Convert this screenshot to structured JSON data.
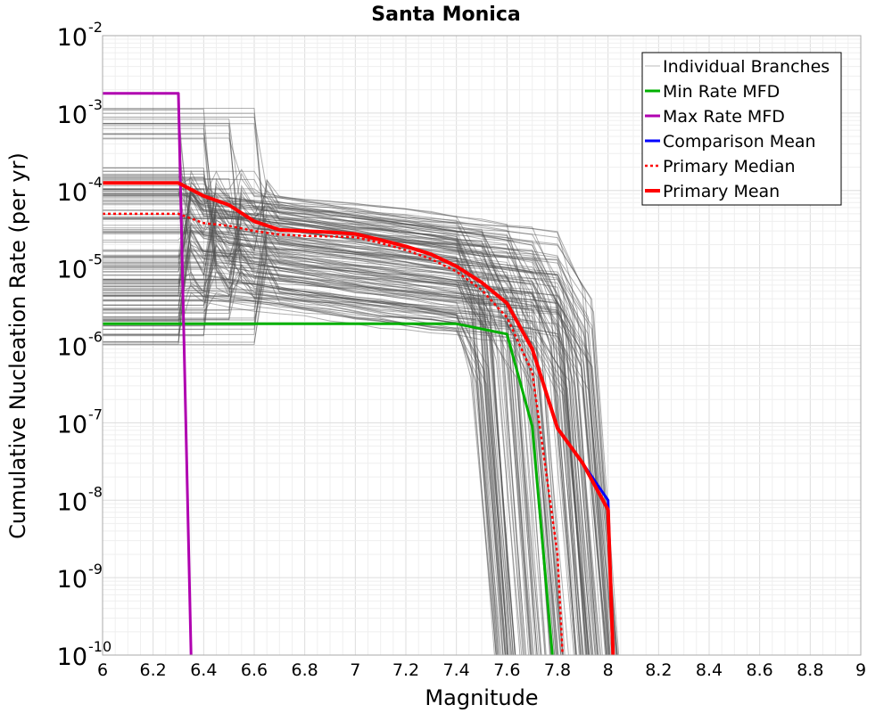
{
  "chart_data": {
    "type": "line",
    "title": "Santa Monica",
    "xlabel": "Magnitude",
    "ylabel": "Cumulative Nucleation Rate (per yr)",
    "xlim": [
      6,
      9
    ],
    "ylim": [
      1e-10,
      0.01
    ],
    "y_scale": "log",
    "grid": true,
    "legend_position": "top-right",
    "x_ticks": [
      "6",
      "6.2",
      "6.4",
      "6.6",
      "6.8",
      "7",
      "7.2",
      "7.4",
      "7.6",
      "7.8",
      "8",
      "8.2",
      "8.4",
      "8.6",
      "8.8",
      "9"
    ],
    "y_ticks": [
      {
        "base": "10",
        "exp": "-10",
        "value": 1e-10
      },
      {
        "base": "10",
        "exp": "-9",
        "value": 1e-09
      },
      {
        "base": "10",
        "exp": "-8",
        "value": 1e-08
      },
      {
        "base": "10",
        "exp": "-7",
        "value": 1e-07
      },
      {
        "base": "10",
        "exp": "-6",
        "value": 1e-06
      },
      {
        "base": "10",
        "exp": "-5",
        "value": 1e-05
      },
      {
        "base": "10",
        "exp": "-4",
        "value": 0.0001
      },
      {
        "base": "10",
        "exp": "-3",
        "value": 0.001
      },
      {
        "base": "10",
        "exp": "-2",
        "value": 0.01
      }
    ],
    "series": [
      {
        "name": "Min Rate MFD",
        "color": "#00b000",
        "width": 3,
        "dash": "",
        "points": [
          [
            6.0,
            1.9e-06
          ],
          [
            7.4,
            1.9e-06
          ],
          [
            7.6,
            1.4e-06
          ],
          [
            7.7,
            9e-08
          ],
          [
            7.78,
            1e-10
          ]
        ]
      },
      {
        "name": "Max Rate MFD",
        "color": "#b000b0",
        "width": 3,
        "dash": "",
        "points": [
          [
            6.0,
            0.0018
          ],
          [
            6.3,
            0.0018
          ],
          [
            6.35,
            1e-10
          ]
        ]
      },
      {
        "name": "Comparison Mean",
        "color": "#0000ff",
        "width": 3,
        "dash": "",
        "points": [
          [
            6.0,
            0.000125
          ],
          [
            6.3,
            0.000125
          ],
          [
            6.4,
            8.5e-05
          ],
          [
            6.5,
            6.5e-05
          ],
          [
            6.6,
            4e-05
          ],
          [
            6.7,
            3.1e-05
          ],
          [
            6.8,
            3e-05
          ],
          [
            6.9,
            2.9e-05
          ],
          [
            7.0,
            2.75e-05
          ],
          [
            7.1,
            2.3e-05
          ],
          [
            7.2,
            1.9e-05
          ],
          [
            7.3,
            1.5e-05
          ],
          [
            7.4,
            1.05e-05
          ],
          [
            7.5,
            6.5e-06
          ],
          [
            7.6,
            3.5e-06
          ],
          [
            7.7,
            9e-07
          ],
          [
            7.8,
            8.5e-08
          ],
          [
            7.9,
            3e-08
          ],
          [
            8.0,
            1e-08
          ],
          [
            8.02,
            1e-10
          ]
        ]
      },
      {
        "name": "Primary Median",
        "color": "#ff0000",
        "width": 2.5,
        "dash": "3,3",
        "points": [
          [
            6.0,
            5e-05
          ],
          [
            6.3,
            5e-05
          ],
          [
            6.4,
            3.8e-05
          ],
          [
            6.5,
            3.5e-05
          ],
          [
            6.6,
            3e-05
          ],
          [
            6.7,
            2.7e-05
          ],
          [
            6.8,
            2.6e-05
          ],
          [
            6.9,
            2.55e-05
          ],
          [
            7.0,
            2.5e-05
          ],
          [
            7.1,
            2.1e-05
          ],
          [
            7.2,
            1.7e-05
          ],
          [
            7.3,
            1.3e-05
          ],
          [
            7.4,
            9e-06
          ],
          [
            7.5,
            5.2e-06
          ],
          [
            7.6,
            2.3e-06
          ],
          [
            7.7,
            4.5e-07
          ],
          [
            7.8,
            2e-09
          ],
          [
            7.82,
            1e-10
          ]
        ]
      },
      {
        "name": "Primary Mean",
        "color": "#ff0000",
        "width": 4,
        "dash": "",
        "points": [
          [
            6.0,
            0.000125
          ],
          [
            6.3,
            0.000125
          ],
          [
            6.4,
            8.5e-05
          ],
          [
            6.5,
            6.5e-05
          ],
          [
            6.6,
            4e-05
          ],
          [
            6.7,
            3.1e-05
          ],
          [
            6.8,
            3e-05
          ],
          [
            6.9,
            2.9e-05
          ],
          [
            7.0,
            2.75e-05
          ],
          [
            7.1,
            2.3e-05
          ],
          [
            7.2,
            1.9e-05
          ],
          [
            7.3,
            1.5e-05
          ],
          [
            7.4,
            1.05e-05
          ],
          [
            7.5,
            6.5e-06
          ],
          [
            7.6,
            3.5e-06
          ],
          [
            7.7,
            9e-07
          ],
          [
            7.8,
            8.5e-08
          ],
          [
            7.9,
            3e-08
          ],
          [
            8.0,
            7.5e-09
          ],
          [
            8.02,
            1e-10
          ]
        ]
      }
    ],
    "individual_branches": {
      "name": "Individual Branches",
      "color": "#505050",
      "count": 160
    },
    "legend": [
      {
        "label": "Individual Branches",
        "color": "#bbbbbb",
        "width": 1,
        "dash": ""
      },
      {
        "label": "Min Rate MFD",
        "color": "#00b000",
        "width": 3,
        "dash": ""
      },
      {
        "label": "Max Rate MFD",
        "color": "#b000b0",
        "width": 3,
        "dash": ""
      },
      {
        "label": "Comparison Mean",
        "color": "#0000ff",
        "width": 3,
        "dash": ""
      },
      {
        "label": "Primary Median",
        "color": "#ff0000",
        "width": 2.5,
        "dash": "3,3"
      },
      {
        "label": "Primary Mean",
        "color": "#ff0000",
        "width": 4,
        "dash": ""
      }
    ]
  }
}
